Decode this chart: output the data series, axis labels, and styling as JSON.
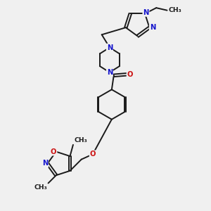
{
  "bg_color": "#f0f0f0",
  "bond_color": "#1a1a1a",
  "N_color": "#1414cc",
  "O_color": "#cc1414",
  "font_size": 7.2,
  "bond_width": 1.4,
  "dbo": 0.06,
  "figsize": [
    3.0,
    3.0
  ],
  "dpi": 100,
  "xlim": [
    0,
    10
  ],
  "ylim": [
    0,
    10
  ]
}
